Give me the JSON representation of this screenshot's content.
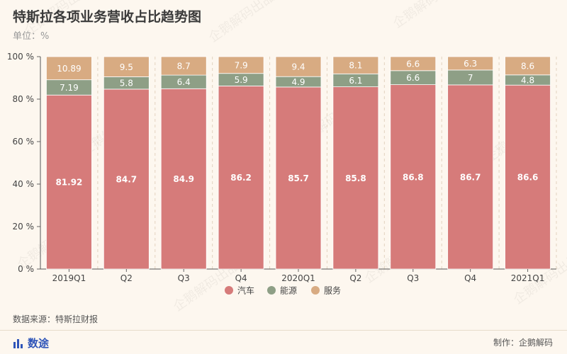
{
  "header": {
    "title": "特斯拉各项业务营收占比趋势图",
    "unit": "单位：%"
  },
  "footer": {
    "source": "数据来源：特斯拉财报",
    "brand": "数途",
    "maker": "制作：企鹅解码",
    "watermark": "企鹅解码出品"
  },
  "colors": {
    "background": "#fdf7ef",
    "brand": "#2f55b8"
  },
  "chart_data": {
    "type": "bar",
    "stacked": true,
    "title": "特斯拉各项业务营收占比趋势图",
    "ylabel": "单位：%",
    "ylim": [
      0,
      100
    ],
    "yticks": [
      "0 %",
      "20 %",
      "40 %",
      "60 %",
      "80 %",
      "100 %"
    ],
    "legend_position": "bottom",
    "categories": [
      "2019Q1",
      "Q2",
      "Q3",
      "Q4",
      "2020Q1",
      "Q2",
      "Q3",
      "Q4",
      "2021Q1"
    ],
    "series": [
      {
        "name": "汽车",
        "color": "#d67b7a",
        "values": [
          81.92,
          84.7,
          84.9,
          86.2,
          85.7,
          85.8,
          86.8,
          86.7,
          86.6
        ]
      },
      {
        "name": "能源",
        "color": "#8e9f86",
        "values": [
          7.19,
          5.8,
          6.4,
          5.9,
          4.9,
          6.1,
          6.6,
          7,
          4.8
        ]
      },
      {
        "name": "服务",
        "color": "#d8ab82",
        "values": [
          10.89,
          9.5,
          8.7,
          7.9,
          9.4,
          8.1,
          6.6,
          6.3,
          8.6
        ]
      }
    ]
  }
}
